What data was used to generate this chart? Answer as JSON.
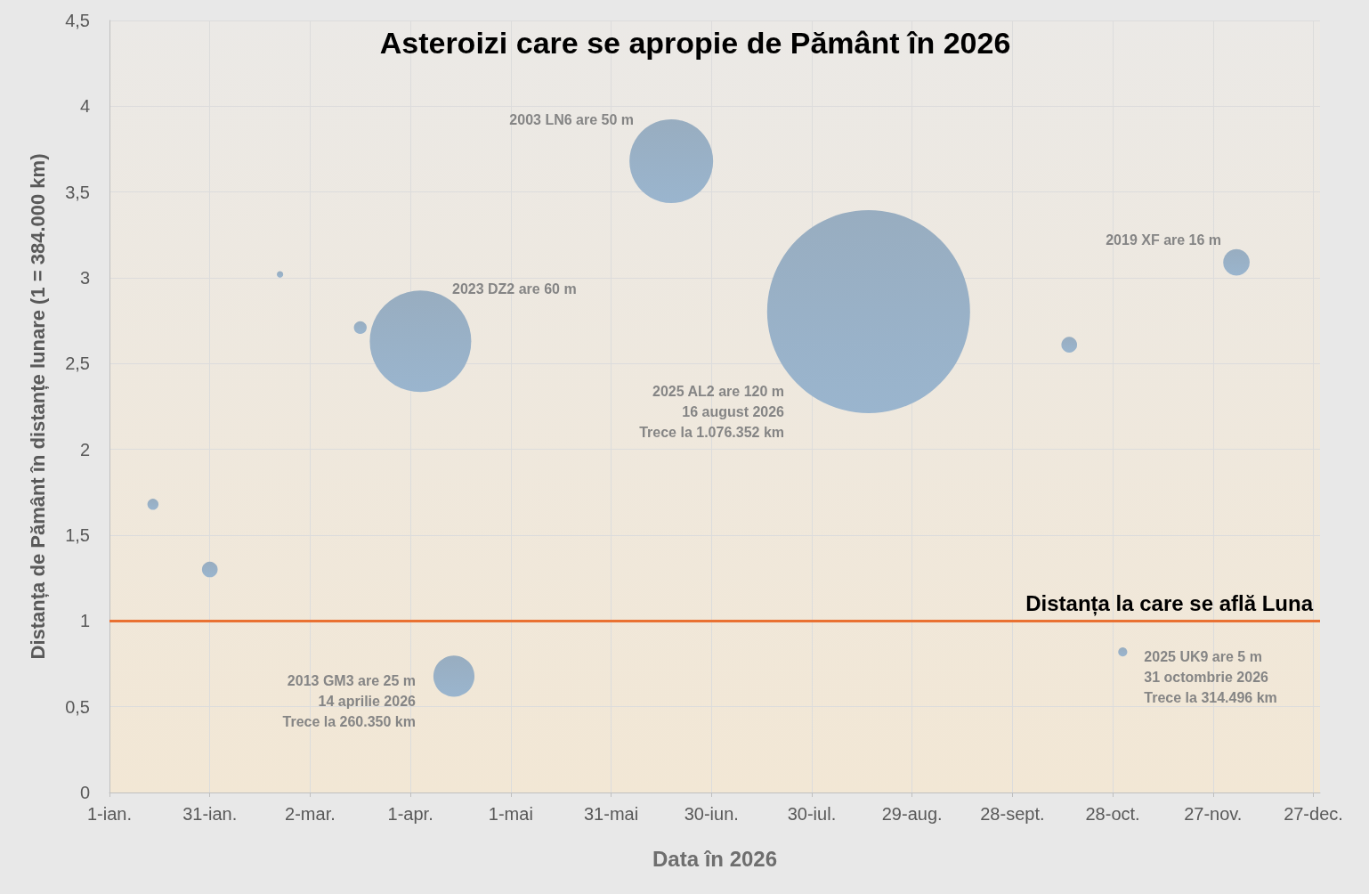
{
  "chart_data": {
    "type": "bubble",
    "title": "Asteroizi care se apropie de Pământ în 2026",
    "xlabel": "Data în 2026",
    "ylabel": "Distanța de Pământ în distanțe lunare (1 = 384.000 km)",
    "x": [
      "2026-01-14",
      "2026-01-31",
      "2026-02-21",
      "2026-03-17",
      "2026-04-04",
      "2026-04-14",
      "2026-06-18",
      "2026-08-16",
      "2026-10-15",
      "2026-10-31",
      "2026-12-04"
    ],
    "series": [
      {
        "color": "#8aa2b8",
        "values": [
          1.68,
          1.3,
          3.02,
          2.71,
          2.63,
          0.678,
          3.68,
          2.803,
          2.61,
          0.819,
          3.09
        ],
        "sizes": [
          0.003,
          0.006,
          0.001,
          0.004,
          0.25,
          0.041,
          0.17,
          1,
          0.006,
          0.002,
          0.017
        ]
      }
    ],
    "xlim": [
      "2026-01-01",
      "2026-12-29"
    ],
    "xticks": [
      {
        "value": "2026-01-01",
        "label": "1-ian."
      },
      {
        "value": "2026-01-31",
        "label": "31-ian."
      },
      {
        "value": "2026-03-02",
        "label": "2-mar."
      },
      {
        "value": "2026-04-01",
        "label": "1-apr."
      },
      {
        "value": "2026-05-01",
        "label": "1-mai"
      },
      {
        "value": "2026-05-31",
        "label": "31-mai"
      },
      {
        "value": "2026-06-30",
        "label": "30-iun."
      },
      {
        "value": "2026-07-30",
        "label": "30-iul."
      },
      {
        "value": "2026-08-29",
        "label": "29-aug."
      },
      {
        "value": "2026-09-28",
        "label": "28-sept."
      },
      {
        "value": "2026-10-28",
        "label": "28-oct."
      },
      {
        "value": "2026-11-27",
        "label": "27-nov."
      },
      {
        "value": "2026-12-27",
        "label": "27-dec."
      }
    ],
    "ylim": [
      0,
      4.5
    ],
    "yticks": [
      0,
      {
        "value": 0.5,
        "label": "0,5"
      },
      1,
      {
        "value": 1.5,
        "label": "1,5"
      },
      2,
      {
        "value": 2.5,
        "label": "2,5"
      },
      3,
      {
        "value": 3.5,
        "label": "3,5"
      },
      4,
      {
        "value": 4.5,
        "label": "4,5"
      }
    ],
    "grid": true,
    "ref_lines": [
      {
        "axis": "y",
        "value": 1,
        "label": "Distanța la care se află Luna",
        "color": "#e97132"
      }
    ],
    "annotations": [
      "2023 DZ2 are 60 m",
      {
        "text": "2013 GM3 are 25 m\n14 aprilie 2026\nTrece la 260.350 km",
        "x": "2026-04-14",
        "y": 0.678
      },
      "2003 LN6 are 50 m",
      "2025 AL2 are 120 m\n16 august 2026\nTrece la 1.076.352 km",
      {
        "text": "2019 XF are 16 m",
        "x": "2026-12-04",
        "y": 3.09
      },
      {
        "text": "2025 UK9 are 5 m\n31 octombrie 2026\nTrece la 314.496 km",
        "x": "2026-10-31",
        "y": 0.819
      }
    ]
  }
}
